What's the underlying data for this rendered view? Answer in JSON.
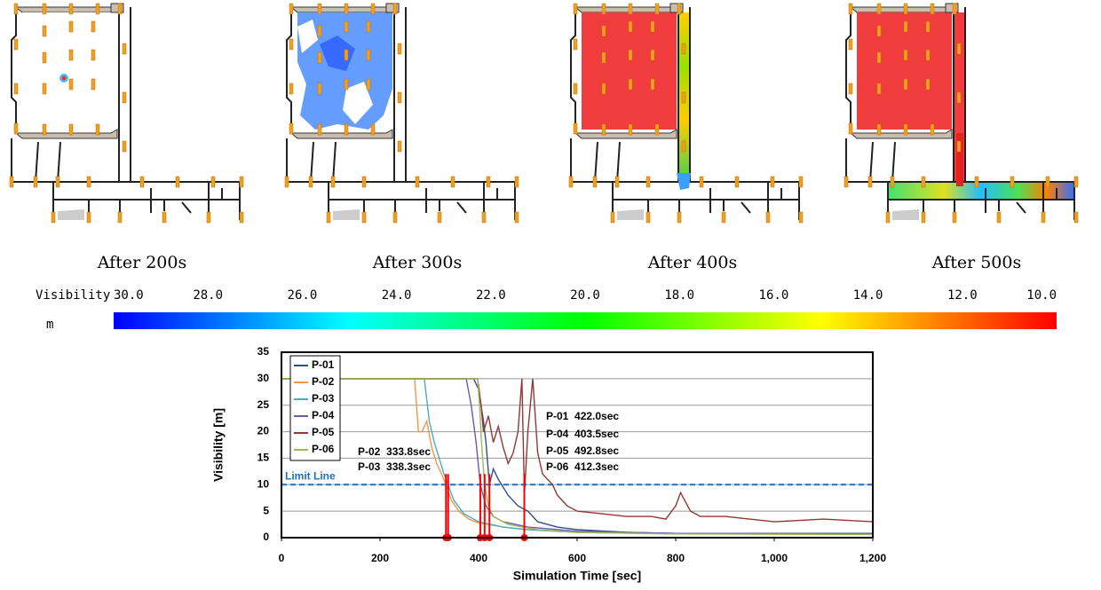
{
  "panels": [
    {
      "caption": "After 200s"
    },
    {
      "caption": "After 300s"
    },
    {
      "caption": "After 400s"
    },
    {
      "caption": "After 500s"
    }
  ],
  "colorbar": {
    "label": "Visibility",
    "unit": "m",
    "colors": [
      "#0000ff",
      "#00ffff",
      "#00ff00",
      "#ffff00",
      "#ff0000"
    ],
    "ticks": [
      {
        "value": 30,
        "label": "30.0"
      },
      {
        "value": 28,
        "label": "28.0"
      },
      {
        "value": 26,
        "label": "26.0"
      },
      {
        "value": 24,
        "label": "24.0"
      },
      {
        "value": 22,
        "label": "22.0"
      },
      {
        "value": 20,
        "label": "20.0"
      },
      {
        "value": 18,
        "label": "18.0"
      },
      {
        "value": 16,
        "label": "16.0"
      },
      {
        "value": 14,
        "label": "14.0"
      },
      {
        "value": 12,
        "label": "12.0"
      },
      {
        "value": 10,
        "label": "10.0"
      }
    ]
  },
  "chart_data": {
    "type": "line",
    "xlabel": "Simulation Time [sec]",
    "ylabel": "Visibility [m]",
    "xlim": [
      0,
      1200
    ],
    "ylim": [
      0,
      35
    ],
    "xticks": [
      0,
      200,
      400,
      600,
      800,
      {
        "value": 1000,
        "label": "1,000"
      },
      {
        "value": 1200,
        "label": "1,200"
      }
    ],
    "yticks": [
      0,
      5,
      10,
      15,
      20,
      25,
      30,
      35
    ],
    "grid": true,
    "legend": "top-left",
    "series": [
      {
        "name": "P-01",
        "color": "#2f4f8f",
        "x": [
          0,
          390,
          400,
          410,
          415,
          422,
          430,
          440,
          460,
          480,
          500,
          520,
          560,
          600,
          700,
          800,
          1000,
          1200
        ],
        "values": [
          30,
          30,
          28,
          22,
          18,
          10,
          13,
          11,
          8,
          6,
          5,
          3,
          2,
          1.5,
          1,
          0.8,
          0.8,
          0.8
        ]
      },
      {
        "name": "P-02",
        "color": "#f79646",
        "x": [
          0,
          270,
          278,
          285,
          295,
          305,
          315,
          325,
          334,
          345,
          360,
          380,
          400,
          450,
          500,
          600,
          800,
          1000,
          1200
        ],
        "values": [
          30,
          30,
          20,
          20,
          22,
          17,
          14,
          12,
          10,
          7,
          5,
          3.5,
          2.8,
          2,
          1.5,
          1,
          0.8,
          0.7,
          0.7
        ]
      },
      {
        "name": "P-03",
        "color": "#4bacc6",
        "x": [
          0,
          290,
          300,
          310,
          320,
          330,
          338,
          350,
          370,
          400,
          450,
          500,
          600,
          800,
          1000,
          1200
        ],
        "values": [
          30,
          30,
          22,
          18,
          15,
          12,
          10,
          7,
          4.5,
          3,
          2,
          1.5,
          1,
          0.7,
          0.7,
          0.7
        ]
      },
      {
        "name": "P-04",
        "color": "#6a5aa8",
        "x": [
          0,
          375,
          385,
          395,
          403.5,
          415,
          430,
          450,
          500,
          600,
          800,
          1200
        ],
        "values": [
          30,
          30,
          25,
          18,
          10,
          6,
          4,
          3,
          2,
          1.2,
          0.8,
          0.7
        ]
      },
      {
        "name": "P-05",
        "color": "#943634",
        "x": [
          0,
          398,
          405,
          410,
          420,
          430,
          440,
          450,
          460,
          470,
          480,
          488,
          493,
          500,
          510,
          520,
          530,
          540,
          550,
          560,
          580,
          600,
          650,
          700,
          750,
          780,
          800,
          810,
          830,
          850,
          900,
          1000,
          1100,
          1200
        ],
        "values": [
          30,
          30,
          25,
          20,
          23,
          18,
          21,
          17,
          14,
          16,
          20,
          30,
          8,
          20,
          30,
          16,
          12,
          11,
          10,
          8,
          6,
          5,
          4.5,
          4,
          4,
          3.5,
          6,
          8.5,
          5,
          4,
          4,
          3,
          3.5,
          3
        ]
      },
      {
        "name": "P-06",
        "color": "#9bbb59",
        "x": [
          0,
          398,
          402,
          406,
          412.3,
          420,
          430,
          460,
          520,
          600,
          800,
          1200
        ],
        "values": [
          30,
          30,
          25,
          18,
          10,
          6,
          4,
          2.5,
          1.5,
          1,
          0.7,
          0.6
        ]
      }
    ],
    "limit_line": {
      "value": 10,
      "label": "Limit Line",
      "color": "#1f6fbf"
    },
    "marker_color": "#ff0000",
    "annotations": [
      {
        "text": "P-02  333.8sec",
        "x": 333.8
      },
      {
        "text": "P-03  338.3sec",
        "x": 338.3
      },
      {
        "text": "P-01  422.0sec",
        "x": 422.0
      },
      {
        "text": "P-04  403.5sec",
        "x": 403.5
      },
      {
        "text": "P-05  492.8sec",
        "x": 492.8
      },
      {
        "text": "P-06  412.3sec",
        "x": 412.3
      }
    ]
  }
}
